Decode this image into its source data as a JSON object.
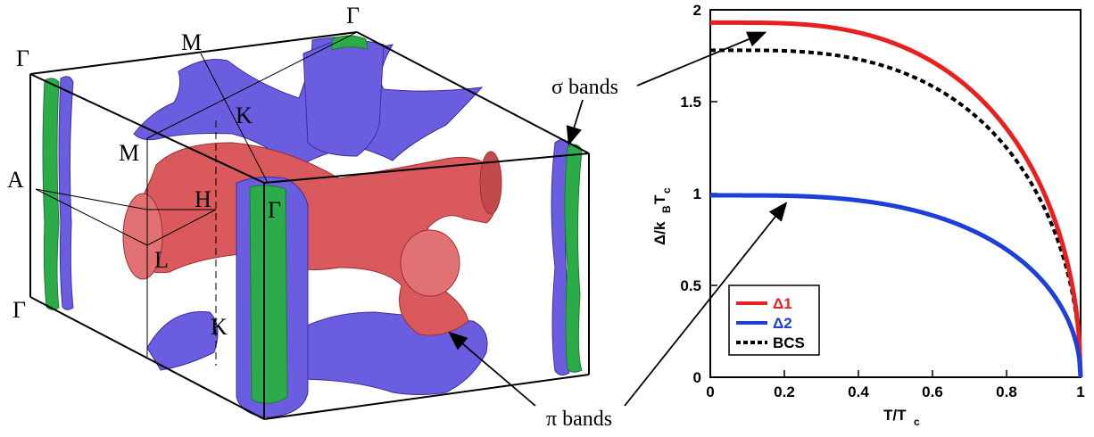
{
  "colors": {
    "red_surface": "#d9595c",
    "blue_surface": "#6a5de0",
    "green_surface": "#2cab49",
    "delta1": "#e8201f",
    "delta2": "#1e3fd9",
    "bcs": "#000000"
  },
  "fermi_surface": {
    "labels": {
      "gamma_top_left": "Γ",
      "gamma_top_right": "Γ",
      "gamma_bottom_left": "Γ",
      "gamma_center": "Γ",
      "m_top": "M",
      "m_left": "M",
      "k_upper": "K",
      "k_lower": "K",
      "a": "A",
      "h": "H",
      "l": "L"
    },
    "sigma_label": "σ bands",
    "pi_label": "π bands"
  },
  "chart_data": {
    "type": "line",
    "xlabel_main": "T/T",
    "xlabel_sub": "c",
    "ylabel_main": "Δ/k",
    "ylabel_sub1": "B",
    "ylabel_mid": "T",
    "ylabel_sub2": "c",
    "xlim": [
      0,
      1
    ],
    "ylim": [
      0,
      2
    ],
    "xticks": [
      "0",
      "0.2",
      "0.4",
      "0.6",
      "0.8",
      "1"
    ],
    "yticks": [
      "0",
      "0.5",
      "1",
      "1.5",
      "2"
    ],
    "legend_position": "bottom-left",
    "series": [
      {
        "name": "Δ1",
        "gap0": 1.93,
        "color": "#e8201f",
        "style": "solid"
      },
      {
        "name": "Δ2",
        "gap0": 0.99,
        "color": "#1e3fd9",
        "style": "solid"
      },
      {
        "name": "BCS",
        "gap0": 1.78,
        "color": "#000000",
        "style": "dashed"
      }
    ]
  }
}
